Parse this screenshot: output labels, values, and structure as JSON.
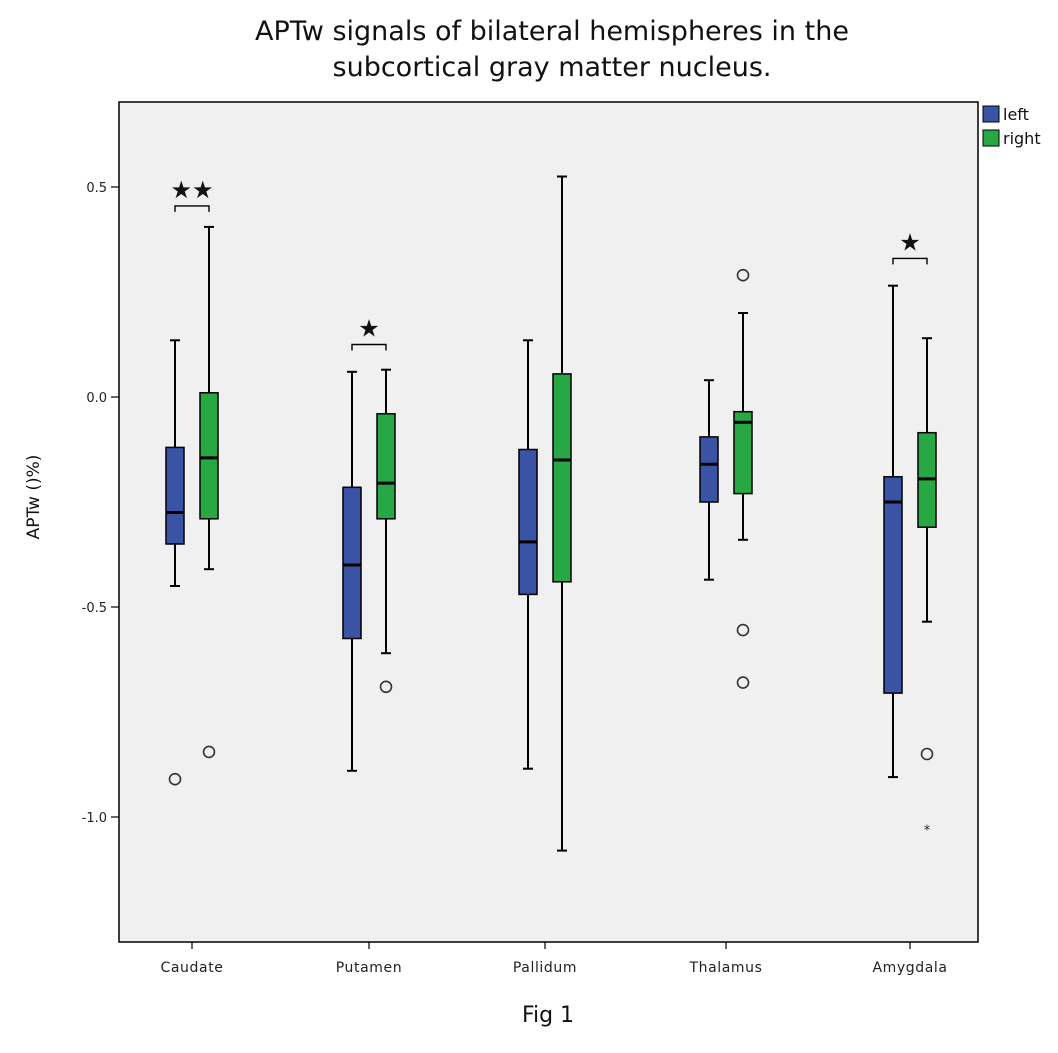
{
  "chart_data": {
    "type": "box",
    "title_lines": [
      "APTw signals of bilateral hemispheres  in the",
      "subcortical gray matter nucleus."
    ],
    "xlabel": "",
    "ylabel": "APTw ()%)",
    "ylim": [
      -1.3,
      0.7
    ],
    "yticks": [
      0.5,
      0.0,
      -0.5,
      -1.0
    ],
    "ytick_labels": [
      "0.5",
      "0.0",
      "-0.5",
      "-1.0"
    ],
    "categories": [
      "Caudate",
      "Putamen",
      "Pallidum",
      "Thalamus",
      "Amygdala"
    ],
    "legend_position": "top-right",
    "grid": false,
    "series": [
      {
        "name": "left",
        "color": "#3a53a4",
        "boxes": [
          {
            "category": "Caudate",
            "whisker_low": -0.45,
            "q1": -0.35,
            "median": -0.275,
            "q3": -0.12,
            "whisker_high": 0.135,
            "outliers": [
              -0.91
            ],
            "extremes": []
          },
          {
            "category": "Putamen",
            "whisker_low": -0.89,
            "q1": -0.575,
            "median": -0.4,
            "q3": -0.215,
            "whisker_high": 0.06,
            "outliers": [],
            "extremes": []
          },
          {
            "category": "Pallidum",
            "whisker_low": -0.885,
            "q1": -0.47,
            "median": -0.345,
            "q3": -0.125,
            "whisker_high": 0.135,
            "outliers": [],
            "extremes": []
          },
          {
            "category": "Thalamus",
            "whisker_low": -0.435,
            "q1": -0.25,
            "median": -0.16,
            "q3": -0.095,
            "whisker_high": 0.04,
            "outliers": [],
            "extremes": []
          },
          {
            "category": "Amygdala",
            "whisker_low": -0.905,
            "q1": -0.705,
            "median": -0.25,
            "q3": -0.19,
            "whisker_high": 0.265,
            "outliers": [],
            "extremes": []
          }
        ]
      },
      {
        "name": "right",
        "color": "#27a844",
        "boxes": [
          {
            "category": "Caudate",
            "whisker_low": -0.41,
            "q1": -0.29,
            "median": -0.145,
            "q3": 0.01,
            "whisker_high": 0.405,
            "outliers": [
              -0.845
            ],
            "extremes": []
          },
          {
            "category": "Putamen",
            "whisker_low": -0.61,
            "q1": -0.29,
            "median": -0.205,
            "q3": -0.04,
            "whisker_high": 0.065,
            "outliers": [
              -0.69
            ],
            "extremes": []
          },
          {
            "category": "Pallidum",
            "whisker_low": -1.08,
            "q1": -0.44,
            "median": -0.15,
            "q3": 0.055,
            "whisker_high": 0.525,
            "outliers": [],
            "extremes": []
          },
          {
            "category": "Thalamus",
            "whisker_low": -0.34,
            "q1": -0.23,
            "median": -0.06,
            "q3": -0.035,
            "whisker_high": 0.2,
            "outliers": [
              0.29,
              -0.555,
              -0.68
            ],
            "extremes": []
          },
          {
            "category": "Amygdala",
            "whisker_low": -0.535,
            "q1": -0.31,
            "median": -0.195,
            "q3": -0.085,
            "whisker_high": 0.14,
            "outliers": [
              -0.85
            ],
            "extremes": [
              -1.025
            ]
          }
        ]
      }
    ],
    "annotations": [
      {
        "category": "Caudate",
        "text": "★★",
        "y": 0.455
      },
      {
        "category": "Putamen",
        "text": "★",
        "y": 0.125
      },
      {
        "category": "Amygdala",
        "text": "★",
        "y": 0.33
      }
    ]
  },
  "caption": "Fig 1"
}
